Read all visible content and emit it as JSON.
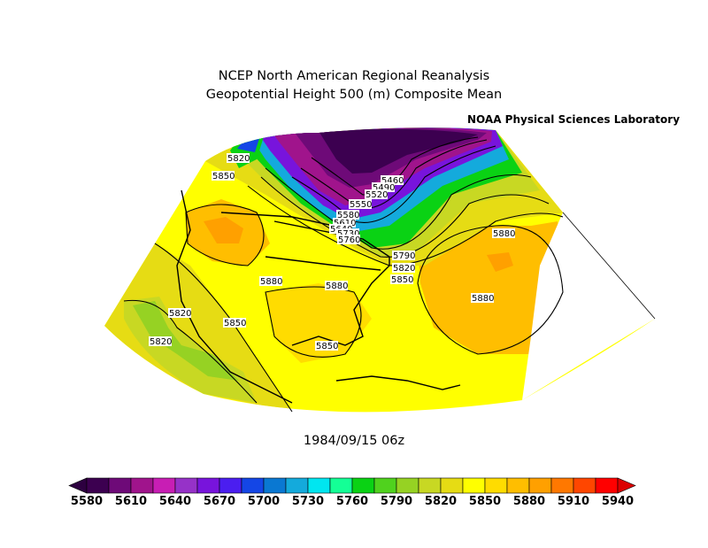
{
  "title": {
    "line1": "NCEP North American Regional Reanalysis",
    "line2": "Geopotential Height 500 (m) Composite Mean"
  },
  "lab": "NOAA Physical Sciences Laboratory",
  "date": "1984/09/15 06z",
  "colorbar": {
    "ticks": [
      "5580",
      "5610",
      "5640",
      "5670",
      "5700",
      "5730",
      "5760",
      "5790",
      "5820",
      "5850",
      "5880",
      "5910",
      "5940"
    ],
    "colors": [
      "#3c0050",
      "#6e0a78",
      "#a0148c",
      "#c81eb4",
      "#9632c8",
      "#7814dc",
      "#4b1ef0",
      "#1446e6",
      "#0a78d2",
      "#14aadc",
      "#00e6f0",
      "#14ff96",
      "#0ad214",
      "#50d21e",
      "#96d223",
      "#c8d823",
      "#e6dc14",
      "#ffff00",
      "#ffdc00",
      "#ffbe00",
      "#ffa000",
      "#ff7800",
      "#ff4600",
      "#ff0000"
    ],
    "under_color": "#2d0040",
    "over_color": "#dc0000"
  },
  "contour_labels": [
    {
      "text": "5820"
    },
    {
      "text": "5850"
    },
    {
      "text": "5880"
    },
    {
      "text": "5880"
    },
    {
      "text": "5880"
    },
    {
      "text": "5880"
    },
    {
      "text": "5820"
    },
    {
      "text": "5850"
    },
    {
      "text": "5820"
    },
    {
      "text": "5850"
    },
    {
      "text": "5460"
    },
    {
      "text": "5490"
    },
    {
      "text": "5520"
    },
    {
      "text": "5550"
    },
    {
      "text": "5580"
    },
    {
      "text": "5610"
    },
    {
      "text": "5640"
    },
    {
      "text": "5730"
    },
    {
      "text": "5760"
    },
    {
      "text": "5790"
    },
    {
      "text": "5820"
    },
    {
      "text": "5850"
    }
  ]
}
